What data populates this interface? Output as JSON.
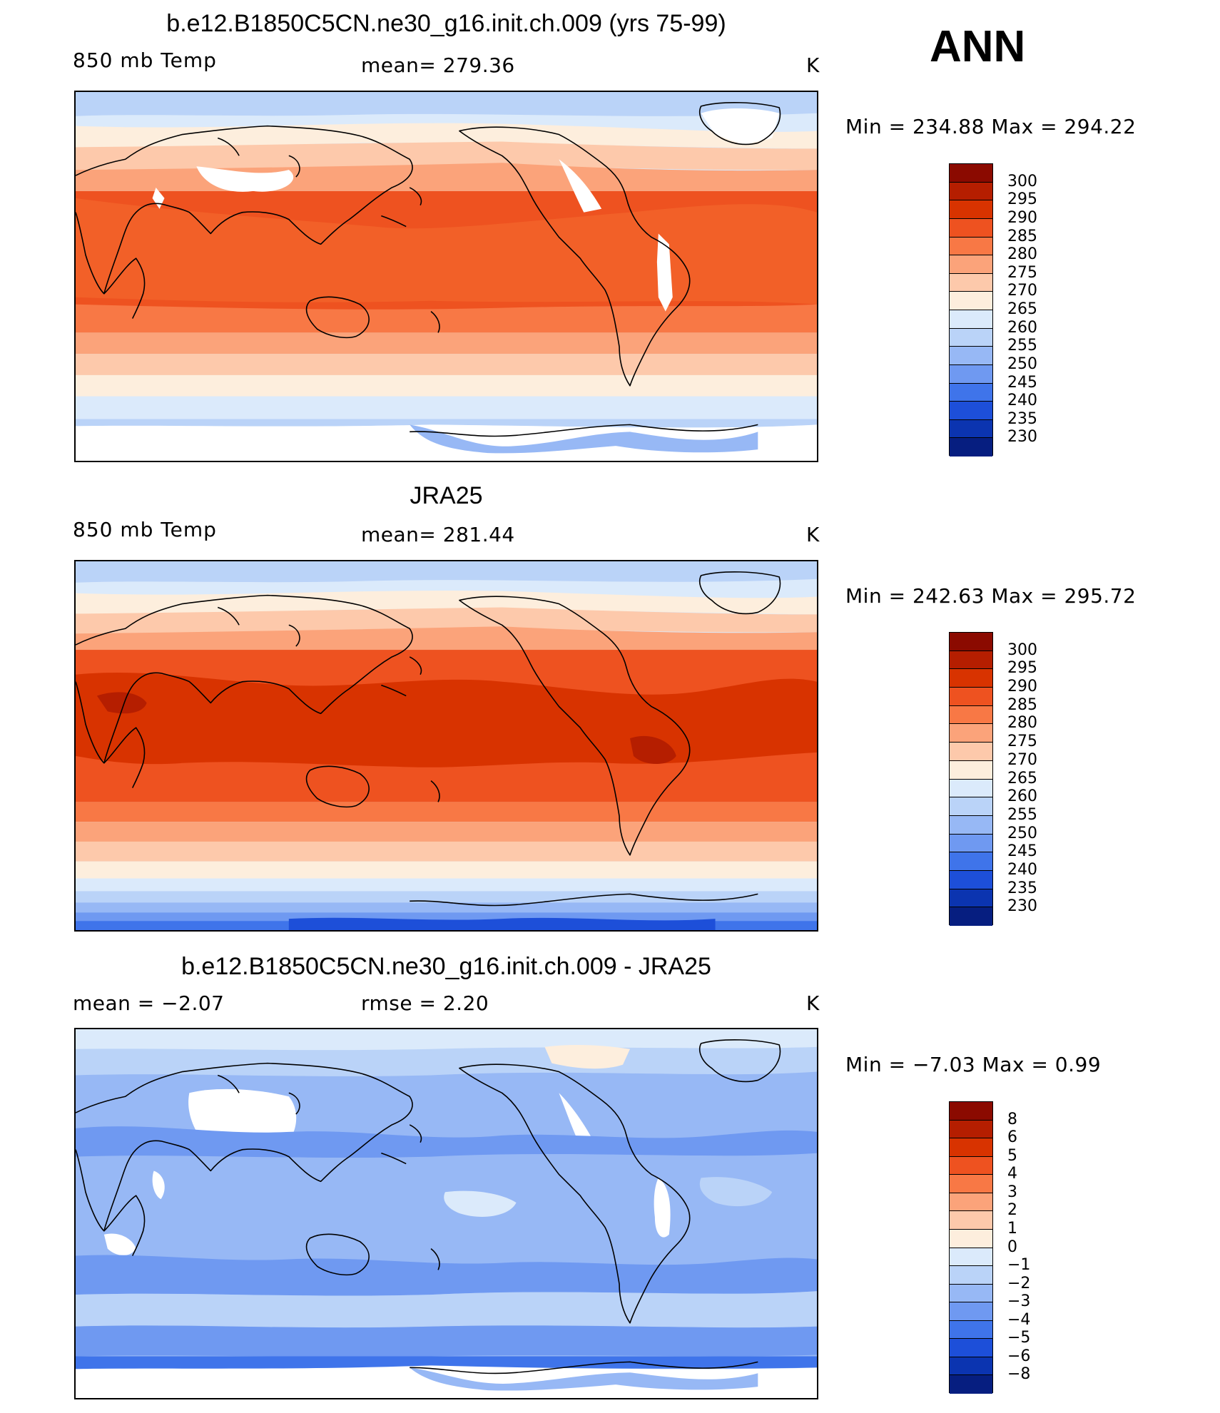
{
  "season_label": "ANN",
  "panels": [
    {
      "title": "b.e12.B1850C5CN.ne30_g16.init.ch.009 (yrs 75-99)",
      "left_label": "850 mb Temp",
      "center_label": "mean=  279.36",
      "units": "K",
      "minmax": "Min  =  234.88  Max  =  294.22"
    },
    {
      "title": "JRA25",
      "left_label": "850 mb Temp",
      "center_label": "mean=  281.44",
      "units": "K",
      "minmax": "Min  =  242.63  Max  =  295.72"
    },
    {
      "title": "b.e12.B1850C5CN.ne30_g16.init.ch.009 - JRA25",
      "left_label": "mean  =    −2.07",
      "center_label": "rmse  =     2.20",
      "units": "K",
      "minmax": "Min  =    −7.03  Max  =     0.99"
    }
  ],
  "colorbars": {
    "temperature": {
      "labels": [
        "300",
        "295",
        "290",
        "285",
        "280",
        "275",
        "270",
        "265",
        "260",
        "255",
        "250",
        "245",
        "240",
        "235",
        "230"
      ],
      "colors": [
        "#8b0a00",
        "#b51e00",
        "#d83300",
        "#ee5220",
        "#f87845",
        "#fba37a",
        "#fdc9ab",
        "#fdeedd",
        "#dbeafb",
        "#bad3f8",
        "#97b8f5",
        "#6f99f1",
        "#3f74ea",
        "#1d4fd9",
        "#0b34b0",
        "#061e80"
      ]
    },
    "difference": {
      "labels": [
        "8",
        "6",
        "5",
        "4",
        "3",
        "2",
        "1",
        "0",
        "−1",
        "−2",
        "−3",
        "−4",
        "−5",
        "−6",
        "−8"
      ],
      "colors": [
        "#8b0a00",
        "#b51e00",
        "#d83300",
        "#ee5220",
        "#f87845",
        "#fba37a",
        "#fdc9ab",
        "#fdeedd",
        "#dbeafb",
        "#bad3f8",
        "#97b8f5",
        "#6f99f1",
        "#3f74ea",
        "#1d4fd9",
        "#0b34b0",
        "#061e80"
      ]
    }
  }
}
